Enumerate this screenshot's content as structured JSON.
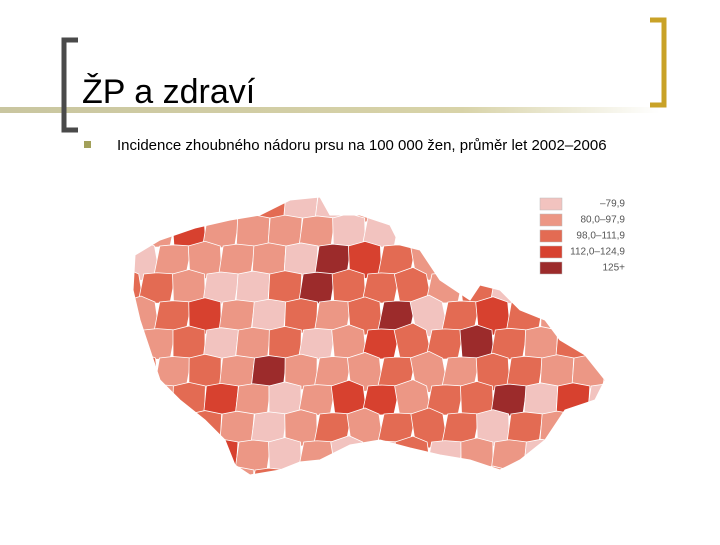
{
  "header": {
    "title": "ŽP a zdraví"
  },
  "bullets": [
    "Incidence zhoubného nádoru prsu na 100 000 žen, průměr let 2002–2006"
  ],
  "legend": [
    {
      "label": "–79,9",
      "color": "#f2c3bf"
    },
    {
      "label": "80,0–97,9",
      "color": "#ec9785"
    },
    {
      "label": "98,0–111,9",
      "color": "#e36b53"
    },
    {
      "label": "112,0–124,9",
      "color": "#d7412f"
    },
    {
      "label": "125+",
      "color": "#9c2b2b"
    }
  ]
}
